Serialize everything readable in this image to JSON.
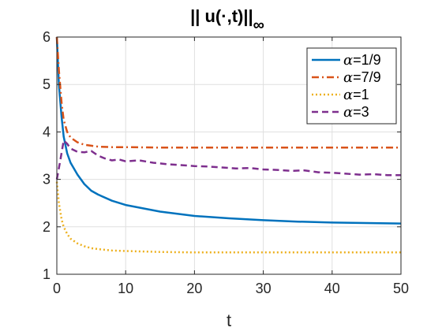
{
  "chart_data": {
    "type": "line",
    "title": {
      "main": "|| u(·,t)||",
      "subscript": "∞"
    },
    "xlabel": "t",
    "ylabel": "",
    "xlim": [
      0,
      50
    ],
    "ylim": [
      1,
      6
    ],
    "xticks": [
      0,
      10,
      20,
      30,
      40,
      50
    ],
    "yticks": [
      1,
      2,
      3,
      4,
      5,
      6
    ],
    "grid": true,
    "legend_position": "top-right",
    "series": [
      {
        "name": "α=1/9",
        "greek": "α",
        "suffix": "=1/9",
        "color": "#0072BD",
        "style": "solid",
        "x": [
          0,
          0.3,
          0.7,
          1,
          1.5,
          2,
          3,
          4,
          5,
          6,
          8,
          10,
          15,
          20,
          25,
          30,
          35,
          40,
          45,
          50
        ],
        "y": [
          6.0,
          5.0,
          4.3,
          3.9,
          3.55,
          3.35,
          3.1,
          2.9,
          2.76,
          2.68,
          2.55,
          2.46,
          2.32,
          2.23,
          2.18,
          2.14,
          2.11,
          2.09,
          2.08,
          2.07
        ]
      },
      {
        "name": "α=7/9",
        "greek": "α",
        "suffix": "=7/9",
        "color": "#D95319",
        "style": "dashdot",
        "x": [
          0,
          0.3,
          0.7,
          1,
          1.5,
          2,
          3,
          4,
          5,
          6,
          8,
          10,
          15,
          20,
          25,
          30,
          35,
          40,
          45,
          50
        ],
        "y": [
          6.0,
          5.3,
          4.6,
          4.25,
          4.0,
          3.88,
          3.78,
          3.73,
          3.71,
          3.69,
          3.68,
          3.68,
          3.67,
          3.67,
          3.67,
          3.67,
          3.67,
          3.67,
          3.67,
          3.67
        ]
      },
      {
        "name": "α=1",
        "greek": "α",
        "suffix": "=1",
        "color": "#EDB120",
        "style": "dotted",
        "x": [
          0,
          0.3,
          0.7,
          1,
          1.5,
          2,
          3,
          4,
          5,
          6,
          8,
          10,
          15,
          20,
          25,
          30,
          35,
          40,
          45,
          50
        ],
        "y": [
          2.95,
          2.5,
          2.15,
          2.0,
          1.85,
          1.75,
          1.65,
          1.59,
          1.55,
          1.53,
          1.5,
          1.49,
          1.47,
          1.46,
          1.46,
          1.46,
          1.46,
          1.46,
          1.46,
          1.46
        ]
      },
      {
        "name": "α=3",
        "greek": "α",
        "suffix": "=3",
        "color": "#7E2F8E",
        "style": "dashed",
        "x": [
          0,
          0.5,
          1,
          1.5,
          2,
          3,
          4,
          5,
          6,
          7,
          8,
          9,
          10,
          12,
          14,
          16,
          18,
          20,
          22,
          24,
          26,
          28,
          30,
          32,
          34,
          36,
          38,
          40,
          42,
          44,
          46,
          48,
          50
        ],
        "y": [
          3.0,
          3.4,
          3.82,
          3.75,
          3.65,
          3.58,
          3.57,
          3.6,
          3.5,
          3.44,
          3.4,
          3.42,
          3.38,
          3.4,
          3.35,
          3.32,
          3.3,
          3.28,
          3.27,
          3.25,
          3.23,
          3.24,
          3.21,
          3.2,
          3.18,
          3.19,
          3.15,
          3.14,
          3.12,
          3.1,
          3.11,
          3.09,
          3.09
        ]
      }
    ]
  }
}
